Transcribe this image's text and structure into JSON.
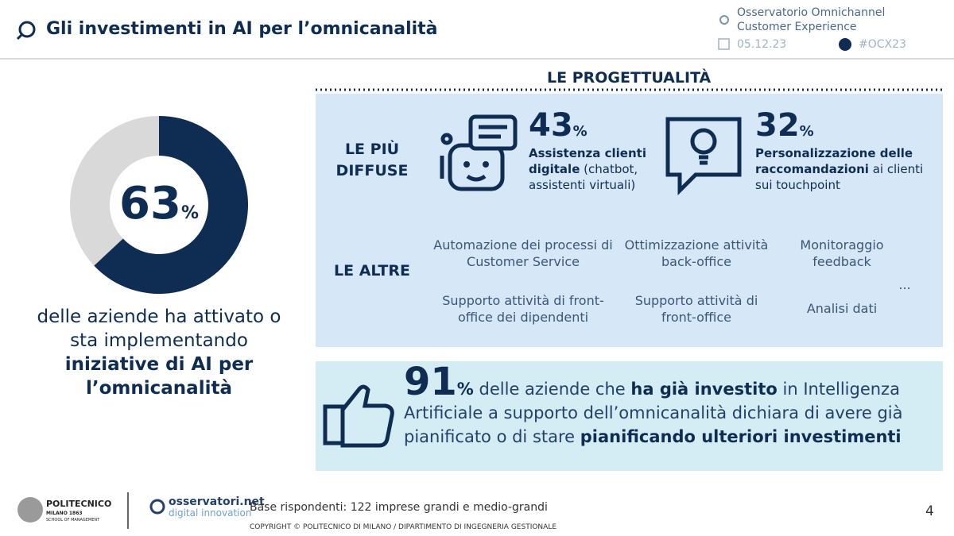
{
  "header": {
    "title": "Gli investimenti in AI per l’omnicanalità",
    "source": [
      "Osservatorio Omnichannel",
      "Customer Experience"
    ],
    "date": "05.12.23",
    "hashtag": "#OCX23"
  },
  "donut": {
    "value": 63,
    "unit": "%",
    "caption": [
      "delle aziende ha attivato o sta implementando",
      "iniziative di AI per l’omnicanalità"
    ]
  },
  "projects": {
    "title": "LE PROGETTUALITÀ",
    "top_label": "LE PIÙ DIFFUSE",
    "top": [
      {
        "value": 43,
        "unit": "%",
        "bold": "Assistenza clienti digitale",
        "text": "(chatbot, assistenti virtuali)"
      },
      {
        "value": 32,
        "unit": "%",
        "bold": "Personalizzazione delle raccomandazioni",
        "text": "ai clienti sui touchpoint"
      }
    ],
    "others_label": "LE ALTRE",
    "others": [
      "Automazione dei processi di Customer Service",
      "Ottimizzazione attività back-office",
      "Monitoraggio feedback",
      "Supporto attività di front-office dei dipendenti",
      "Supporto attività di front-office",
      "Analisi dati",
      "..."
    ]
  },
  "highlight": {
    "value": 91,
    "unit": "%",
    "segments": [
      "delle aziende che",
      "ha già investito",
      "in Intelligenza Artificiale a supporto dell’omnicanalità dichiara di avere già pianificato o di stare",
      "pianificando ulteriori investimenti"
    ]
  },
  "footer": {
    "logo1": [
      "POLITECNICO",
      "MILANO 1863",
      "SCHOOL OF MANAGEMENT"
    ],
    "logo2": [
      "osservatori.net",
      "digital innovation"
    ],
    "base": "Base rispondenti: 122 imprese grandi e medio-grandi",
    "copyright": "COPYRIGHT © POLITECNICO DI MILANO / DIPARTIMENTO DI INGEGNERIA GESTIONALE",
    "page": "4"
  }
}
